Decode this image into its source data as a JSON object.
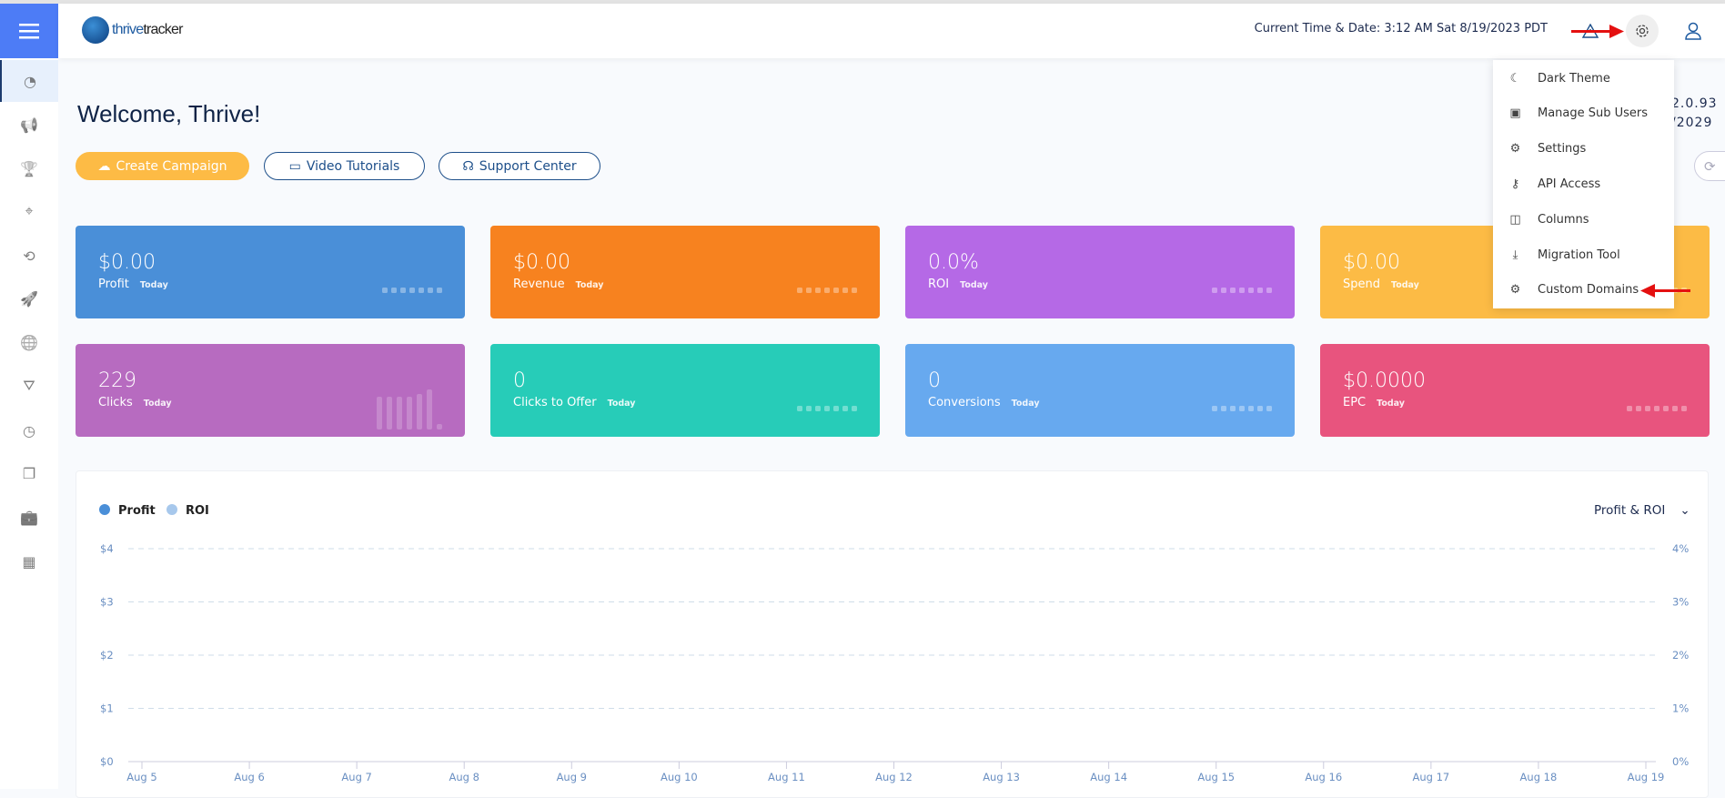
{
  "header": {
    "logo_text_a": "thrive",
    "logo_text_b": "tracker",
    "time": "Current Time & Date: 3:12 AM Sat 8/19/2023 PDT"
  },
  "sidebar": {
    "items": [
      "dashboard",
      "campaigns",
      "offers",
      "landers",
      "traffic-sources",
      "flows",
      "domains",
      "filters",
      "reports",
      "pages",
      "affiliate-networks",
      "apps"
    ]
  },
  "main": {
    "welcome": "Welcome, Thrive!",
    "version_line1": "2.0.93",
    "version_line2": "/2029",
    "buttons": {
      "create": "Create Campaign",
      "video": "Video Tutorials",
      "support": "Support Center"
    }
  },
  "cards": [
    {
      "value": "$0.00",
      "label": "Profit",
      "period": "Today",
      "color": "#4a8fd8"
    },
    {
      "value": "$0.00",
      "label": "Revenue",
      "period": "Today",
      "color": "#f7821f"
    },
    {
      "value": "0.0%",
      "label": "ROI",
      "period": "Today",
      "color": "#b569e6"
    },
    {
      "value": "$0.00",
      "label": "Spend",
      "period": "Today",
      "color": "#fcbb45"
    },
    {
      "value": "229",
      "label": "Clicks",
      "period": "Today",
      "color": "#b76bc0"
    },
    {
      "value": "0",
      "label": "Clicks to Offer",
      "period": "Today",
      "color": "#27ccb8"
    },
    {
      "value": "0",
      "label": "Conversions",
      "period": "Today",
      "color": "#67a9ef"
    },
    {
      "value": "$0.0000",
      "label": "EPC",
      "period": "Today",
      "color": "#e8547e"
    }
  ],
  "settings_menu": {
    "items": [
      "Dark Theme",
      "Manage Sub Users",
      "Settings",
      "API Access",
      "Columns",
      "Migration Tool",
      "Custom Domains"
    ]
  },
  "chart_data": {
    "type": "line",
    "selector": "Profit & ROI",
    "legend": [
      {
        "name": "Profit",
        "color": "#4a8fd8"
      },
      {
        "name": "ROI",
        "color": "#a7c8ec"
      }
    ],
    "x": [
      "Aug 5",
      "Aug 6",
      "Aug 7",
      "Aug 8",
      "Aug 9",
      "Aug 10",
      "Aug 11",
      "Aug 12",
      "Aug 13",
      "Aug 14",
      "Aug 15",
      "Aug 16",
      "Aug 17",
      "Aug 18",
      "Aug 19"
    ],
    "y_left_ticks": [
      "$4",
      "$3",
      "$2",
      "$1",
      "$0"
    ],
    "y_right_ticks": [
      "4%",
      "3%",
      "2%",
      "1%",
      "0%"
    ],
    "ylim_left": [
      0,
      4
    ],
    "ylim_right": [
      0,
      4
    ],
    "grid": true,
    "legend_position": "top-left"
  }
}
